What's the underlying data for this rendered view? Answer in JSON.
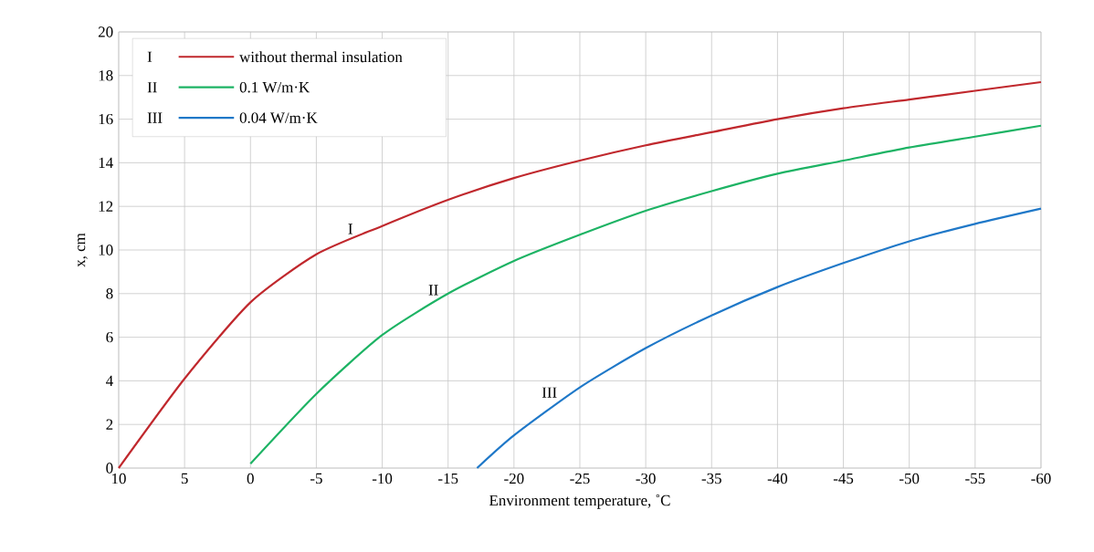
{
  "chart_data": {
    "type": "line",
    "xlabel": "Environment temperature, ˚C",
    "ylabel": "x, cm",
    "xlim": [
      10,
      -60
    ],
    "xticks": [
      10,
      5,
      0,
      -5,
      -10,
      -15,
      -20,
      -25,
      -30,
      -35,
      -40,
      -45,
      -50,
      -55,
      -60
    ],
    "ylim": [
      0,
      20
    ],
    "yticks": [
      0,
      2,
      4,
      6,
      8,
      10,
      12,
      14,
      16,
      18,
      20
    ],
    "grid": true,
    "legend": "top left",
    "marker": "none",
    "line_style": "solid",
    "series": [
      {
        "name": "without thermal insulation",
        "color": "#c0282d",
        "x": [
          10,
          5,
          0,
          -5,
          -10,
          -15,
          -20,
          -25,
          -30,
          -35,
          -40,
          -45,
          -50,
          -55,
          -60
        ],
        "values": [
          0,
          4.1,
          7.6,
          9.8,
          11.1,
          12.3,
          13.3,
          14.1,
          14.8,
          15.4,
          16.0,
          16.5,
          16.9,
          17.3,
          17.7
        ]
      },
      {
        "name": "0.1 W/m·K",
        "color": "#1db364",
        "x": [
          0,
          -5,
          -10,
          -15,
          -20,
          -25,
          -30,
          -35,
          -40,
          -45,
          -50,
          -55,
          -60
        ],
        "values": [
          0.2,
          3.4,
          6.1,
          8.0,
          9.5,
          10.7,
          11.8,
          12.7,
          13.5,
          14.1,
          14.7,
          15.2,
          15.7
        ]
      },
      {
        "name": "0.04 W/m·K",
        "color": "#1f78c8",
        "x": [
          -17.2,
          -20,
          -25,
          -30,
          -35,
          -40,
          -45,
          -50,
          -55,
          -60
        ],
        "values": [
          0,
          1.5,
          3.7,
          5.5,
          7.0,
          8.3,
          9.4,
          10.4,
          11.2,
          11.9
        ]
      }
    ],
    "annotations": [
      {
        "text": "I",
        "x": -8,
        "y": 10.6
      },
      {
        "text": "II",
        "x": -14.5,
        "y": 7.8
      },
      {
        "text": "III",
        "x": -23.5,
        "y": 3.1
      },
      "I",
      "II",
      "III"
    ]
  }
}
